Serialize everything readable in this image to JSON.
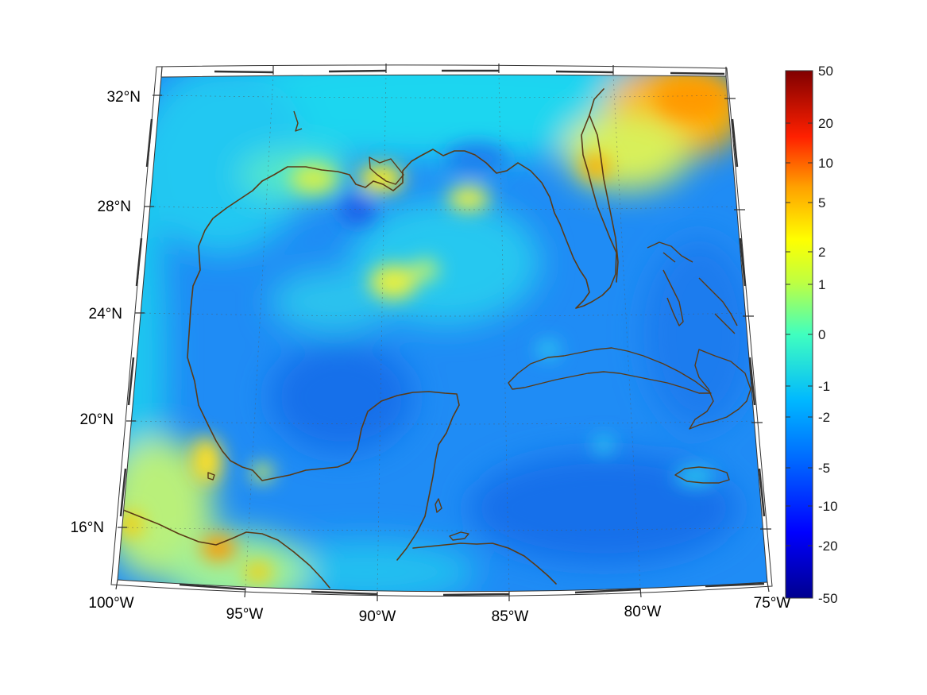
{
  "map": {
    "lon_labels": [
      "100°W",
      "95°W",
      "90°W",
      "85°W",
      "80°W",
      "75°W"
    ],
    "lat_labels": [
      "32°N",
      "28°N",
      "24°N",
      "20°N",
      "16°N"
    ],
    "colorbar": {
      "tick_labels": [
        "50",
        "20",
        "10",
        "5",
        "2",
        "1",
        "0",
        "-1",
        "-2",
        "-5",
        "-10",
        "-20",
        "-50"
      ],
      "colors": [
        "#00008f",
        "#0000ff",
        "#0080ff",
        "#00ffff",
        "#80ff80",
        "#ffff00",
        "#ff8000",
        "#ff0000",
        "#800000"
      ]
    },
    "colors": {
      "coastline": "#5a3a16",
      "base_field": "#1f8cf5"
    }
  }
}
